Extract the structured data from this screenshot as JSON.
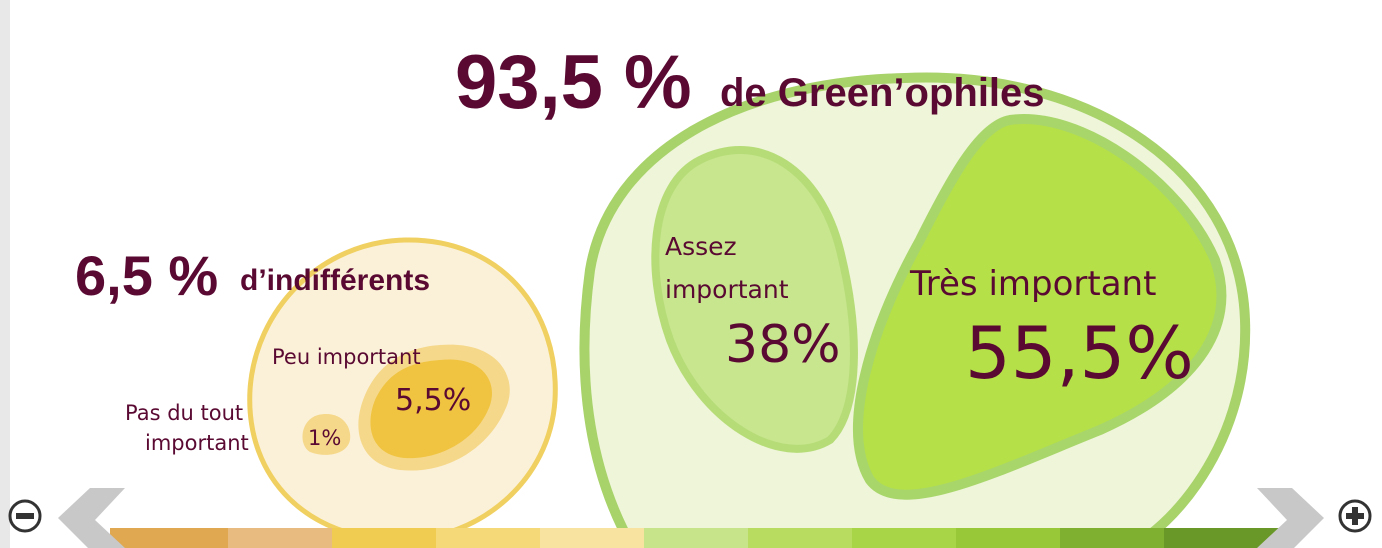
{
  "green": {
    "percent": "93,5 %",
    "label": "de Green’ophiles",
    "assez": {
      "label_line1": "Assez",
      "label_line2": "important",
      "value": "38%"
    },
    "tres": {
      "label": "Très important",
      "value": "55,5%"
    }
  },
  "indifferent": {
    "percent": "6,5 %",
    "label": "d’indifférents",
    "peu": {
      "label": "Peu important",
      "value": "5,5%"
    },
    "pas": {
      "label_line1": "Pas du tout",
      "label_line2": "important",
      "value": "1%"
    }
  }
}
